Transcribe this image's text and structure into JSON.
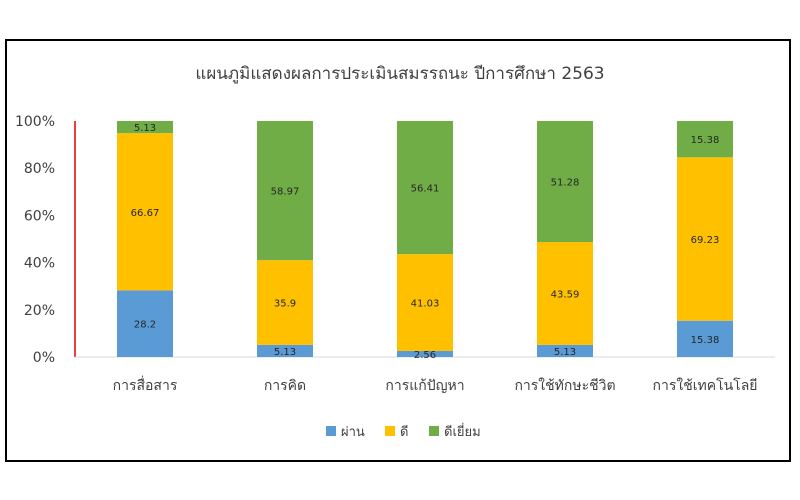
{
  "chart_data": {
    "type": "bar",
    "stacked": true,
    "percent": true,
    "title": "แผนภูมิแสดงผลการประเมินสมรรถนะ ปีการศึกษา 2563",
    "categories": [
      "การสื่อสาร",
      "การคิด",
      "การแก้ปัญหา",
      "การใช้ทักษะชีวิต",
      "การใช้เทคโนโลยี"
    ],
    "series": [
      {
        "name": "ผ่าน",
        "color": "#5B9BD5",
        "values": [
          28.2,
          5.13,
          2.56,
          5.13,
          15.38
        ]
      },
      {
        "name": "ดี",
        "color": "#FFC000",
        "values": [
          66.67,
          35.9,
          41.03,
          43.59,
          69.23
        ]
      },
      {
        "name": "ดีเยี่ยม",
        "color": "#70AD47",
        "values": [
          5.13,
          58.97,
          56.41,
          51.28,
          15.38
        ]
      }
    ],
    "yticks": [
      "0%",
      "20%",
      "40%",
      "60%",
      "80%",
      "100%"
    ],
    "ylim": [
      0,
      100
    ],
    "legend_position": "bottom",
    "grid": false
  }
}
